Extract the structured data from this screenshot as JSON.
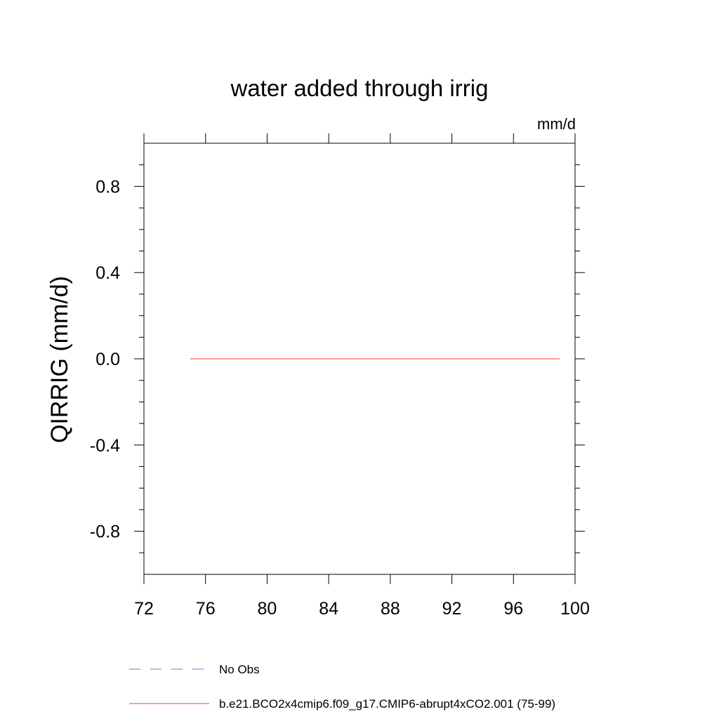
{
  "chart_data": {
    "type": "line",
    "title": "water added through irrig",
    "units_label": "mm/d",
    "xlabel": "",
    "ylabel": "QIRRIG  (mm/d)",
    "xlim": [
      72,
      100
    ],
    "ylim": [
      -1.0,
      1.0
    ],
    "x_ticks": [
      72,
      76,
      80,
      84,
      88,
      92,
      96,
      100
    ],
    "x_tick_labels": [
      "72",
      "76",
      "80",
      "84",
      "88",
      "92",
      "96",
      "100"
    ],
    "y_ticks": [
      -0.8,
      -0.4,
      0.0,
      0.4,
      0.8
    ],
    "y_tick_labels": [
      "-0.8",
      "-0.4",
      "0.0",
      "0.4",
      "0.8"
    ],
    "grid": false,
    "legend_position": "bottom",
    "series": [
      {
        "name": "No Obs",
        "color": "#8f8fd6",
        "dash": "dashed",
        "x": [],
        "y": []
      },
      {
        "name": "b.e21.BCO2x4cmip6.f09_g17.CMIP6-abrupt4xCO2.001 (75-99)",
        "color": "#f26161",
        "dash": "solid",
        "x": [
          75,
          99
        ],
        "y": [
          0.0,
          0.0
        ]
      }
    ]
  }
}
